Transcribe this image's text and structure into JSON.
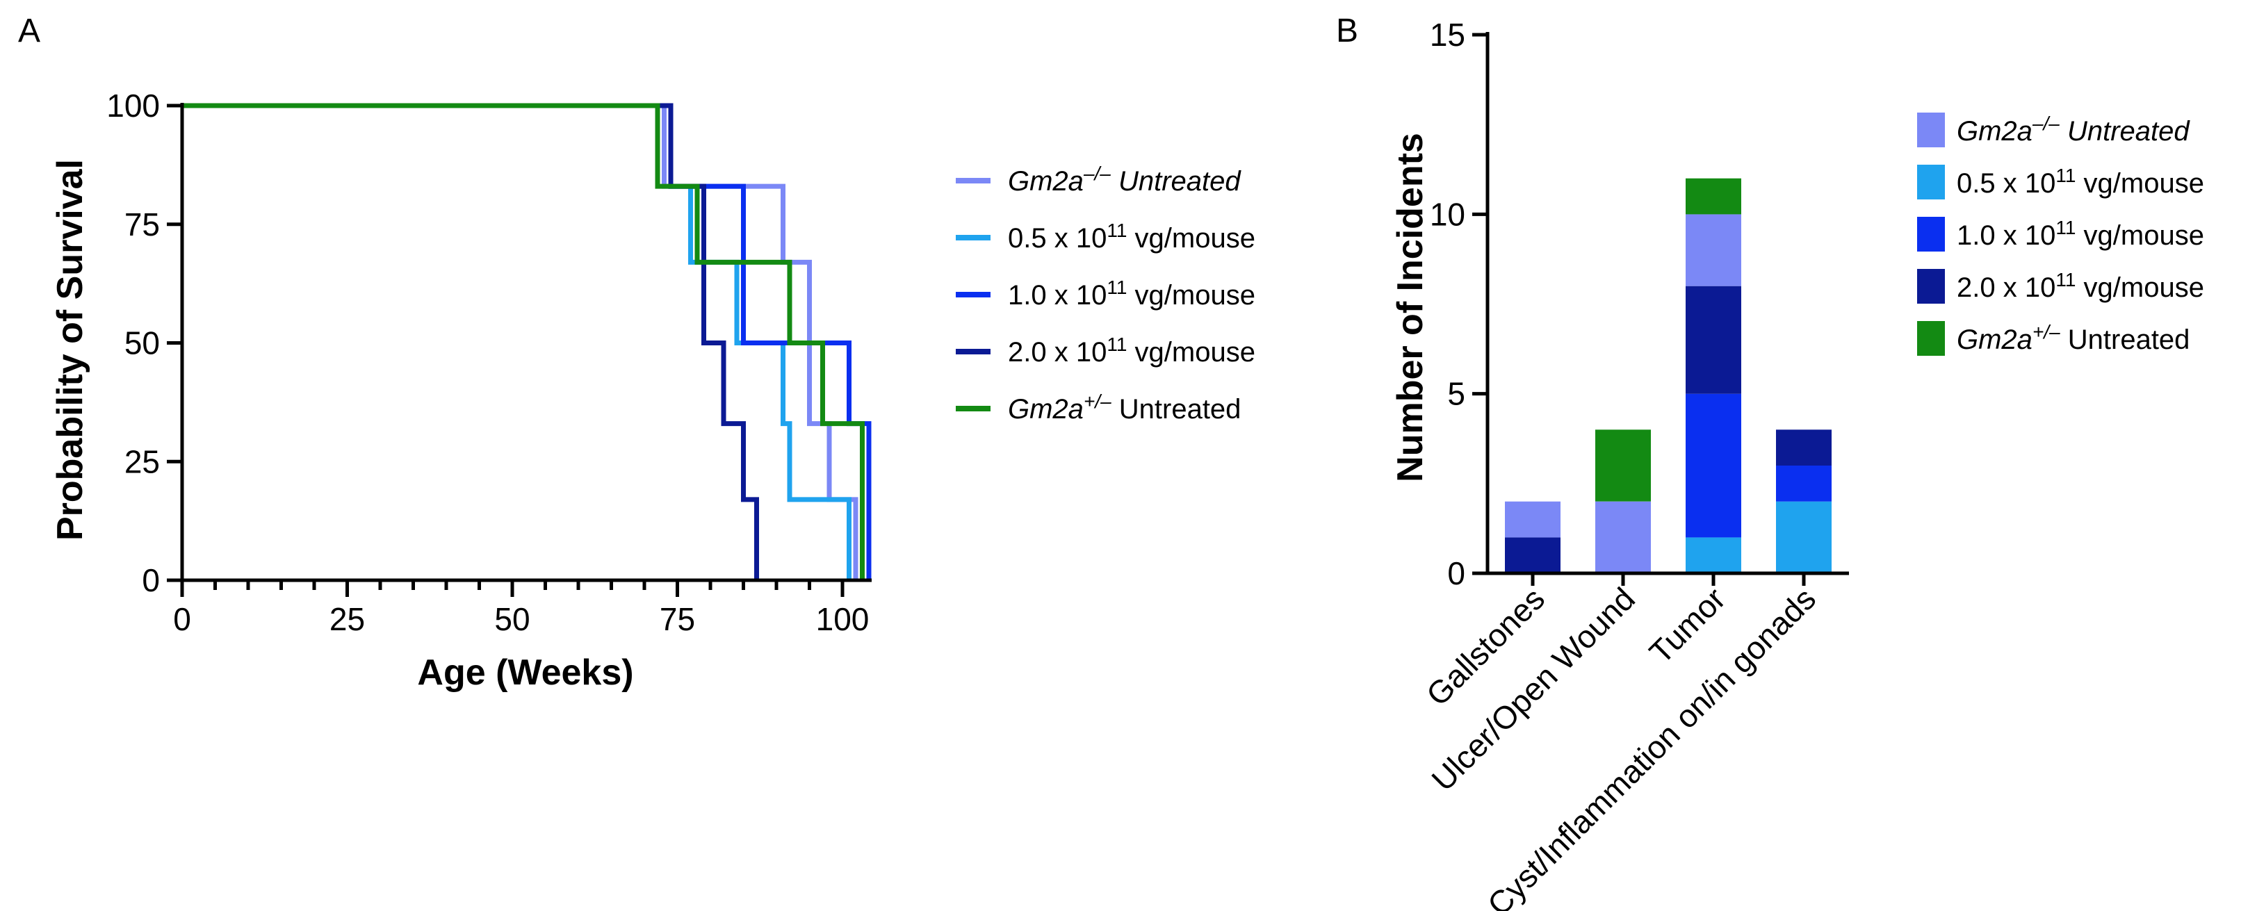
{
  "chart_data": [
    {
      "panel": "A",
      "type": "line",
      "subtype": "kaplan-meier-step",
      "xlabel": "Age (Weeks)",
      "ylabel": "Probability of Survival",
      "xlim": [
        0,
        104
      ],
      "ylim": [
        0,
        100
      ],
      "xticks": [
        0,
        25,
        50,
        75,
        100
      ],
      "yticks": [
        0,
        25,
        50,
        75,
        100
      ],
      "legend_position": "right",
      "series": [
        {
          "name": "Gm2a–/– Untreated",
          "legend_italic": "Gm2a",
          "legend_sup": "–/–",
          "legend_rest": "Untreated",
          "rest_italic": true,
          "color": "#7b88f6",
          "x": [
            0,
            73,
            73,
            91,
            91,
            95,
            95,
            98,
            98,
            102,
            102
          ],
          "y": [
            100,
            100,
            83,
            83,
            67,
            67,
            33,
            33,
            17,
            17,
            0
          ]
        },
        {
          "name": "0.5 x 10^11 vg/mouse",
          "legend_pre": "0.5 x 10",
          "legend_sup": "11",
          "legend_rest": "vg/mouse",
          "color": "#1fa3ee",
          "x": [
            0,
            74,
            74,
            77,
            77,
            84,
            84,
            91,
            91,
            92,
            92,
            101,
            101
          ],
          "y": [
            100,
            100,
            83,
            83,
            67,
            67,
            50,
            50,
            33,
            33,
            17,
            17,
            0
          ]
        },
        {
          "name": "1.0 x 10^11 vg/mouse",
          "legend_pre": "1.0 x 10",
          "legend_sup": "11",
          "legend_rest": "vg/mouse",
          "color": "#0a2ff0",
          "x": [
            0,
            74,
            74,
            85,
            85,
            101,
            101,
            104,
            104
          ],
          "y": [
            100,
            100,
            83,
            83,
            50,
            50,
            33,
            33,
            0
          ]
        },
        {
          "name": "2.0 x 10^11 vg/mouse",
          "legend_pre": "2.0 x 10",
          "legend_sup": "11",
          "legend_rest": "vg/mouse",
          "color": "#0b1a94",
          "x": [
            0,
            74,
            74,
            79,
            79,
            82,
            82,
            85,
            85,
            87,
            87
          ],
          "y": [
            100,
            100,
            83,
            83,
            50,
            50,
            33,
            33,
            17,
            17,
            0
          ]
        },
        {
          "name": "Gm2a+/– Untreated",
          "legend_italic": "Gm2a",
          "legend_sup": "+/–",
          "legend_rest": "Untreated",
          "color": "#138a13",
          "x": [
            0,
            72,
            72,
            78,
            78,
            92,
            92,
            97,
            97,
            103,
            103
          ],
          "y": [
            100,
            100,
            83,
            83,
            67,
            67,
            50,
            50,
            33,
            33,
            0
          ]
        }
      ]
    },
    {
      "panel": "B",
      "type": "bar",
      "subtype": "stacked",
      "ylabel": "Number of Incidents",
      "xlabel": "",
      "ylim": [
        0,
        15
      ],
      "yticks": [
        0,
        5,
        10,
        15
      ],
      "categories": [
        "Gallstones",
        "Ulcer/Open Wound",
        "Tumor",
        "Cyst/Inflammation on/in gonads"
      ],
      "legend_position": "right",
      "series": [
        {
          "name": "0.5 x 10^11 vg/mouse",
          "legend_pre": "0.5 x 10",
          "legend_sup": "11",
          "legend_rest": "vg/mouse",
          "color": "#1fa3ee",
          "values": [
            0,
            0,
            1,
            2
          ]
        },
        {
          "name": "1.0 x 10^11 vg/mouse",
          "legend_pre": "1.0 x 10",
          "legend_sup": "11",
          "legend_rest": "vg/mouse",
          "color": "#0a2ff0",
          "values": [
            0,
            0,
            4,
            1
          ]
        },
        {
          "name": "2.0 x 10^11 vg/mouse",
          "legend_pre": "2.0 x 10",
          "legend_sup": "11",
          "legend_rest": "vg/mouse",
          "color": "#0b1a94",
          "values": [
            1,
            0,
            3,
            1
          ]
        },
        {
          "name": "Gm2a–/– Untreated",
          "legend_italic": "Gm2a",
          "legend_sup": "–/–",
          "legend_rest": "Untreated",
          "rest_italic": true,
          "color": "#7b88f6",
          "values": [
            1,
            2,
            2,
            0
          ]
        },
        {
          "name": "Gm2a+/– Untreated",
          "legend_italic": "Gm2a",
          "legend_sup": "+/–",
          "legend_rest": "Untreated",
          "color": "#138a13",
          "values": [
            0,
            2,
            1,
            0
          ]
        }
      ],
      "legend_order": [
        "Gm2a–/– Untreated",
        "0.5 x 10^11 vg/mouse",
        "1.0 x 10^11 vg/mouse",
        "2.0 x 10^11 vg/mouse",
        "Gm2a+/– Untreated"
      ]
    }
  ]
}
